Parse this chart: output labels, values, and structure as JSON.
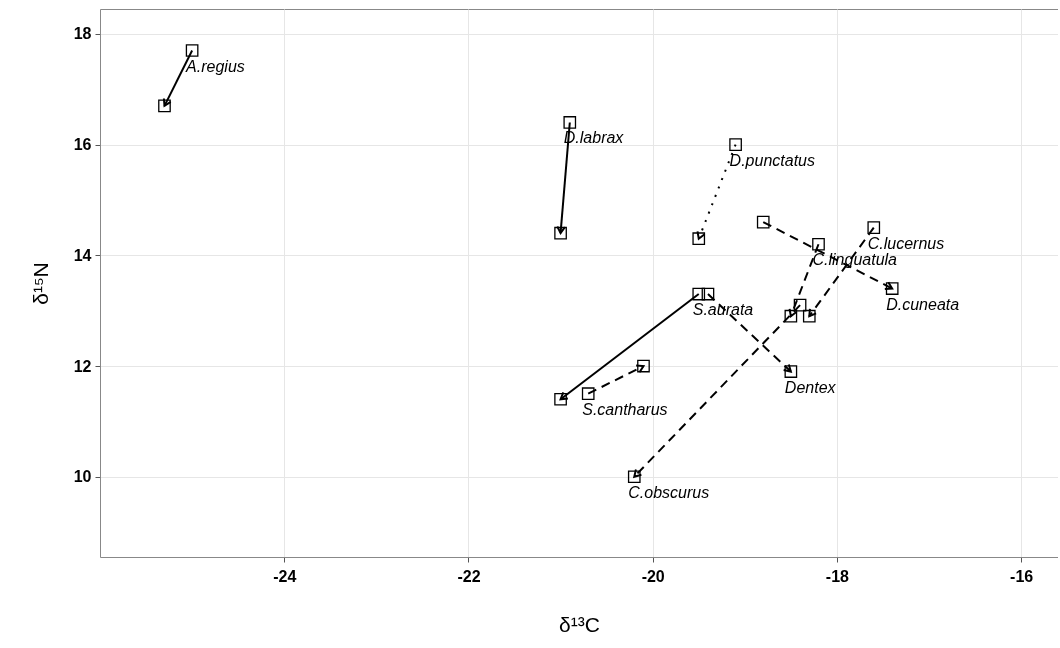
{
  "chart_data": {
    "type": "line",
    "xlabel": "δ¹³C",
    "ylabel": "δ¹⁵N",
    "xlim": [
      -26,
      -15.6
    ],
    "ylim": [
      8.55,
      18.45
    ],
    "xticks": [
      -24,
      -22,
      -20,
      -18,
      -16
    ],
    "yticks": [
      10,
      12,
      14,
      16,
      18
    ],
    "grid": true,
    "marker": "square",
    "series": [
      {
        "color": "#000000",
        "line_style": "solid",
        "x": [
          -25.0,
          -25.3
        ],
        "values": [
          17.7,
          16.7
        ]
      },
      {
        "color": "#000000",
        "line_style": "solid",
        "x": [
          -20.9,
          -21.0
        ],
        "values": [
          16.4,
          14.4
        ]
      },
      {
        "color": "#000000",
        "line_style": "dotted",
        "x": [
          -19.1,
          -19.5
        ],
        "values": [
          16.0,
          14.3
        ]
      },
      {
        "color": "#000000",
        "line_style": "dashed",
        "x": [
          -18.8,
          -17.4
        ],
        "values": [
          14.6,
          13.4
        ]
      },
      {
        "color": "#000000",
        "line_style": "dashed",
        "x": [
          -18.2,
          -18.5
        ],
        "values": [
          14.2,
          12.9
        ]
      },
      {
        "color": "#000000",
        "line_style": "dashed",
        "x": [
          -17.6,
          -18.3
        ],
        "values": [
          14.5,
          12.9
        ]
      },
      {
        "color": "#000000",
        "line_style": "dashed",
        "x": [
          -18.4,
          -20.2
        ],
        "values": [
          13.1,
          10.0
        ]
      },
      {
        "color": "#000000",
        "line_style": "solid",
        "x": [
          -19.5,
          -21.0
        ],
        "values": [
          13.3,
          11.4
        ]
      },
      {
        "color": "#000000",
        "line_style": "dashed",
        "x": [
          -19.4,
          -18.5
        ],
        "values": [
          13.3,
          11.9
        ]
      },
      {
        "color": "#000000",
        "line_style": "dashed",
        "x": [
          -20.7,
          -20.1
        ],
        "values": [
          11.5,
          12.0
        ]
      }
    ],
    "annotations": [
      {
        "text": "A.regius",
        "x": -25.0,
        "y": 17.7
      },
      {
        "text": "D.labrax",
        "x": -20.9,
        "y": 16.4
      },
      {
        "text": "D.punctatus",
        "x": -19.1,
        "y": 16.0
      },
      {
        "text": "D.cuneata",
        "x": -17.4,
        "y": 13.4
      },
      {
        "text": "C.linguatula",
        "x": -18.2,
        "y": 14.2
      },
      {
        "text": "C.lucernus",
        "x": -17.6,
        "y": 14.5
      },
      {
        "text": "C.obscurus",
        "x": -20.2,
        "y": 10.0
      },
      {
        "text": "S.aurata",
        "x": -19.5,
        "y": 13.3
      },
      {
        "text": "Dentex",
        "x": -18.5,
        "y": 11.9
      },
      {
        "text": "S.cantharus",
        "x": -20.7,
        "y": 11.5
      }
    ]
  }
}
